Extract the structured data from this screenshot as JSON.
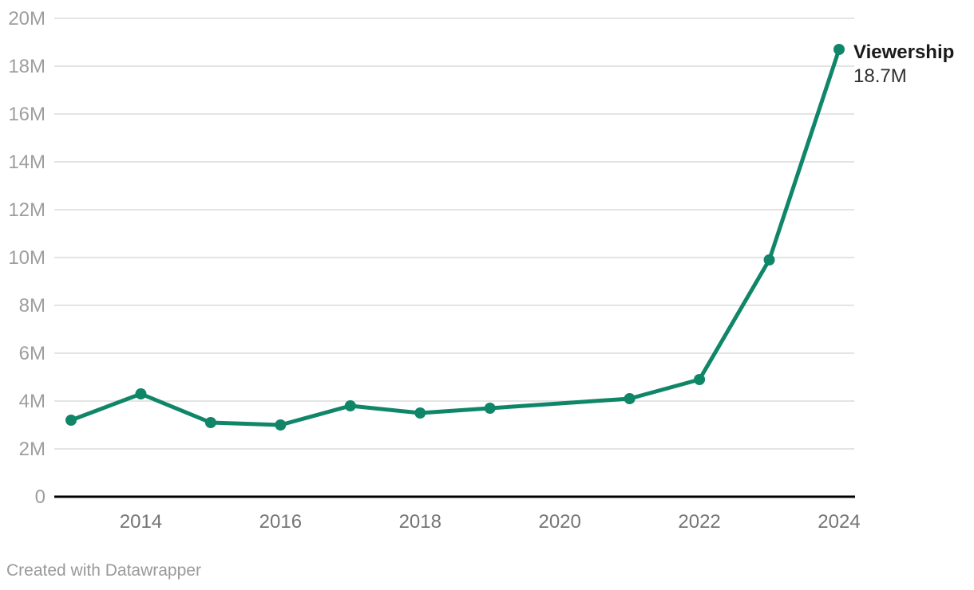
{
  "chart_data": {
    "type": "line",
    "series": [
      {
        "name": "Viewership",
        "x": [
          2013,
          2014,
          2015,
          2016,
          2017,
          2018,
          2019,
          2021,
          2022,
          2023,
          2024
        ],
        "values_millions": [
          3.2,
          4.3,
          3.1,
          3.0,
          3.8,
          3.5,
          3.7,
          4.1,
          4.9,
          9.9,
          18.7
        ]
      }
    ],
    "end_label": {
      "title": "Viewership",
      "value": "18.7M"
    },
    "y_axis": {
      "min_millions": 0,
      "max_millions": 20,
      "tick_values_millions": [
        0,
        2,
        4,
        6,
        8,
        10,
        12,
        14,
        16,
        18,
        20
      ],
      "tick_labels": [
        "0",
        "2M",
        "4M",
        "6M",
        "8M",
        "10M",
        "12M",
        "14M",
        "16M",
        "18M",
        "20M"
      ]
    },
    "x_axis": {
      "min_year": 2013,
      "max_year": 2024,
      "tick_values": [
        2014,
        2016,
        2018,
        2020,
        2022,
        2024
      ],
      "tick_labels": [
        "2014",
        "2016",
        "2018",
        "2020",
        "2022",
        "2024"
      ]
    },
    "grid": "horizontal",
    "legend_position": "end-of-line",
    "note": "no data point for 2020",
    "colors": {
      "line": "#108669",
      "point": "#108669",
      "grid": "#e4e4e4",
      "baseline": "#000000",
      "y_tick_text": "#9e9e9e",
      "x_tick_text": "#757575"
    }
  },
  "footer": {
    "credit": "Created with Datawrapper"
  }
}
